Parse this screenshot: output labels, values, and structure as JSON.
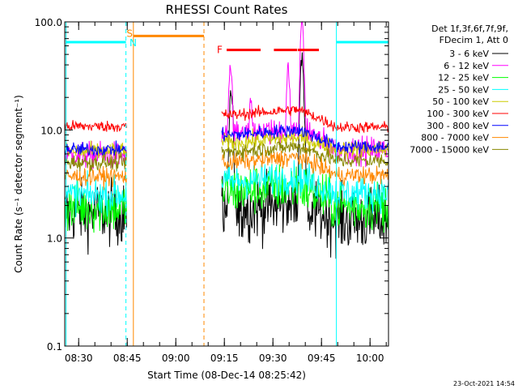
{
  "chart_data": {
    "type": "line",
    "title": "RHESSI Count Rates",
    "xlabel": "Start Time (08-Dec-14 08:25:42)",
    "ylabel": "Count Rate (s⁻¹ detector segment⁻¹)",
    "x_unit": "minutes since 08:25:42",
    "xlim": [
      0,
      100
    ],
    "ylim": [
      0.1,
      100
    ],
    "y_scale": "log",
    "x_ticks": [
      {
        "label": "08:30",
        "x": 4.3
      },
      {
        "label": "08:45",
        "x": 19.3
      },
      {
        "label": "09:00",
        "x": 34.3
      },
      {
        "label": "09:15",
        "x": 49.3
      },
      {
        "label": "09:30",
        "x": 64.3
      },
      {
        "label": "09:45",
        "x": 79.3
      },
      {
        "label": "10:00",
        "x": 94.3
      }
    ],
    "y_ticks": [
      {
        "label": "0.1",
        "y": 0.1
      },
      {
        "label": "1.0",
        "y": 1
      },
      {
        "label": "10.0",
        "y": 10
      },
      {
        "label": "100.0",
        "y": 100
      }
    ],
    "legend_header": [
      "Det 1f,3f,6f,7f,9f,",
      "FDecim 1, Att 0"
    ],
    "legend_placement": "right",
    "series": [
      {
        "name": "3 - 6 keV",
        "color": "#000000",
        "level": [
          1.7,
          1.8,
          1.45
        ],
        "noise": 0.28
      },
      {
        "name": "6 - 12 keV",
        "color": "#ff00ff",
        "level": [
          5.8,
          9.0,
          6.5
        ],
        "noise": 0.12
      },
      {
        "name": "12 - 25 keV",
        "color": "#00ff00",
        "level": [
          1.9,
          2.7,
          2.0
        ],
        "noise": 0.22
      },
      {
        "name": "25 - 50 keV",
        "color": "#00ffff",
        "level": [
          2.5,
          3.3,
          2.6
        ],
        "noise": 0.15
      },
      {
        "name": "50 - 100 keV",
        "color": "#cccc00",
        "level": [
          6.3,
          7.6,
          6.6
        ],
        "noise": 0.08
      },
      {
        "name": "100 - 300 keV",
        "color": "#ff0000",
        "level": [
          10.8,
          13.8,
          10.6
        ],
        "noise": 0.05
      },
      {
        "name": "300 - 800 keV",
        "color": "#0000ff",
        "level": [
          6.6,
          9.0,
          7.0
        ],
        "noise": 0.06
      },
      {
        "name": "800 - 7000 keV",
        "color": "#ff8800",
        "level": [
          3.7,
          5.0,
          3.8
        ],
        "noise": 0.08
      },
      {
        "name": "7000 - 15000 keV",
        "color": "#888800",
        "level": [
          5.0,
          6.3,
          5.2
        ],
        "noise": 0.07
      }
    ],
    "data_segments": [
      [
        0,
        19.2
      ],
      [
        48.5,
        100
      ]
    ],
    "six_twelve_peaks": [
      {
        "x": 51.2,
        "y": 40
      },
      {
        "x": 57.5,
        "y": 18
      },
      {
        "x": 69.0,
        "y": 35
      },
      {
        "x": 73.3,
        "y": 90
      }
    ],
    "three_six_peaks": [
      {
        "x": 51.4,
        "y": 22
      },
      {
        "x": 73.3,
        "y": 45
      }
    ],
    "vertical_markers": [
      {
        "x": 0.4,
        "color": "#00ffff",
        "style": "solid"
      },
      {
        "x": 18.9,
        "color": "#00ffff",
        "style": "dashed"
      },
      {
        "x": 21.2,
        "color": "#ff8800",
        "style": "solid"
      },
      {
        "x": 43.0,
        "color": "#ff8800",
        "style": "dashed"
      },
      {
        "x": 83.9,
        "color": "#00ffff",
        "style": "solid"
      },
      {
        "x": 100,
        "color": "#00ffff",
        "style": "dashed"
      }
    ],
    "flag_bars": [
      {
        "label": "",
        "color": "#00ffff",
        "y": 65,
        "x1": 0.4,
        "x2": 18.9
      },
      {
        "label": "",
        "color": "#ff8800",
        "y": 74,
        "x1": 21.2,
        "x2": 43.0
      },
      {
        "label": "",
        "color": "#00ffff",
        "y": 65,
        "x1": 83.9,
        "x2": 100
      },
      {
        "label": "F",
        "color": "#ff0000",
        "y": 55,
        "x1": 50.0,
        "x2": 60.5
      },
      {
        "label": "",
        "color": "#ff0000",
        "y": 55,
        "x1": 64.6,
        "x2": 71.8
      },
      {
        "label": "",
        "color": "#ff0000",
        "y": 55,
        "x1": 72.0,
        "x2": 78.5
      }
    ],
    "flag_letters": [
      {
        "label": "S",
        "color": "#ff8800",
        "x": 19.1,
        "y": 78
      },
      {
        "label": "N",
        "color": "#00ffff",
        "x": 20.0,
        "y": 64
      }
    ]
  },
  "footer": {
    "timestamp": "23-Oct-2021 14:54"
  }
}
